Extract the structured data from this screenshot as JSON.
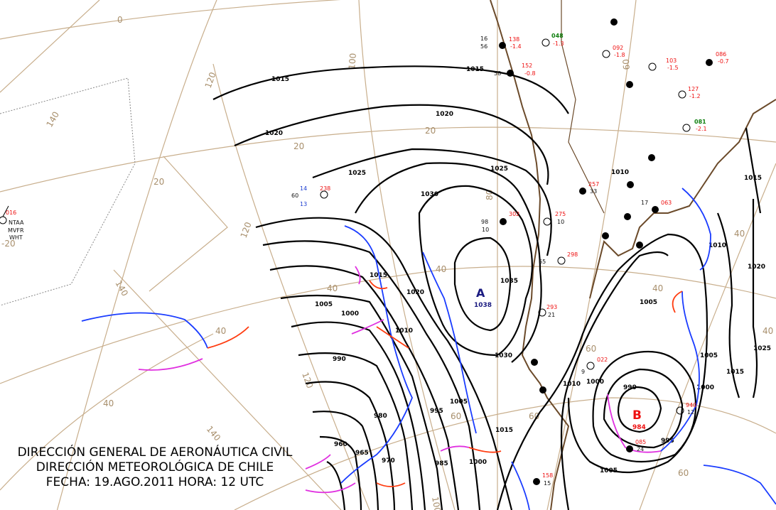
{
  "title": {
    "line1": "DIRECCIÓN GENERAL DE AERONÁUTICA CIVIL",
    "line2": "DIRECCIÓN METEOROLÓGICA DE CHILE",
    "line3": "FECHA: 19.AGO.2011 HORA: 12 UTC"
  },
  "colors": {
    "cold_front": "#1a3cff",
    "warm_front": "#ff3c10",
    "occluded_front": "#e030e0",
    "graticule": "#c8ae8c",
    "coastline": "#6b4a2a"
  },
  "pressure_centers": [
    {
      "type": "high",
      "letter": "A",
      "value": "1038",
      "color": "#1a1a80"
    },
    {
      "type": "low",
      "letter": "B",
      "value": "984",
      "color": "#ee1111"
    }
  ],
  "isobar_labels": [
    "1015",
    "1015",
    "1020",
    "1020",
    "1025",
    "1025",
    "1030",
    "1035",
    "1030",
    "1020",
    "1015",
    "1010",
    "1005",
    "1000",
    "990",
    "995",
    "1005",
    "980",
    "970",
    "965",
    "960",
    "985",
    "1000",
    "1015",
    "1010",
    "1000",
    "990",
    "995",
    "1000",
    "1005",
    "1005",
    "1010",
    "1020",
    "1025",
    "1015",
    "1005",
    "1010",
    "1015"
  ],
  "graticule_labels": [
    "0",
    "120",
    "140",
    "100",
    "80",
    "60",
    "20",
    "20",
    "20",
    "40",
    "40",
    "40",
    "40",
    "40",
    "40",
    "40",
    "60",
    "60",
    "60",
    "60",
    "120",
    "140",
    "140",
    "120",
    "100",
    "-20"
  ],
  "stations": [
    {
      "id": "NTAA",
      "flight": "MVFR",
      "wx": "WHT",
      "pressure": "016"
    },
    {
      "pressure": "238",
      "t": "14",
      "td": "13",
      "v": "60"
    },
    {
      "pressure": "302",
      "t": "98",
      "td": "10"
    },
    {
      "pressure": "138",
      "t": "56",
      "td": "16",
      "tend": "-1.4"
    },
    {
      "pressure": "152",
      "t": "58",
      "tend": "-0.8"
    },
    {
      "pressure": "048",
      "tend": "-1.3"
    },
    {
      "pressure": "257",
      "t": "33"
    },
    {
      "pressure": "275",
      "t": "10"
    },
    {
      "pressure": "298",
      "t": "65"
    },
    {
      "pressure": "293",
      "t": "21"
    },
    {
      "pressure": "063",
      "t": "17"
    },
    {
      "pressure": "092",
      "tend": "-1.8"
    },
    {
      "pressure": "103",
      "tend": "-1.5"
    },
    {
      "pressure": "127",
      "tend": "-1.2"
    },
    {
      "pressure": "086",
      "tend": "-0.7"
    },
    {
      "pressure": "081",
      "tend": "-2.1"
    },
    {
      "pressure": "940",
      "t": "12"
    },
    {
      "pressure": "085",
      "t": "24"
    },
    {
      "pressure": "158",
      "t": "15"
    },
    {
      "pressure": "022",
      "t": "9"
    }
  ]
}
